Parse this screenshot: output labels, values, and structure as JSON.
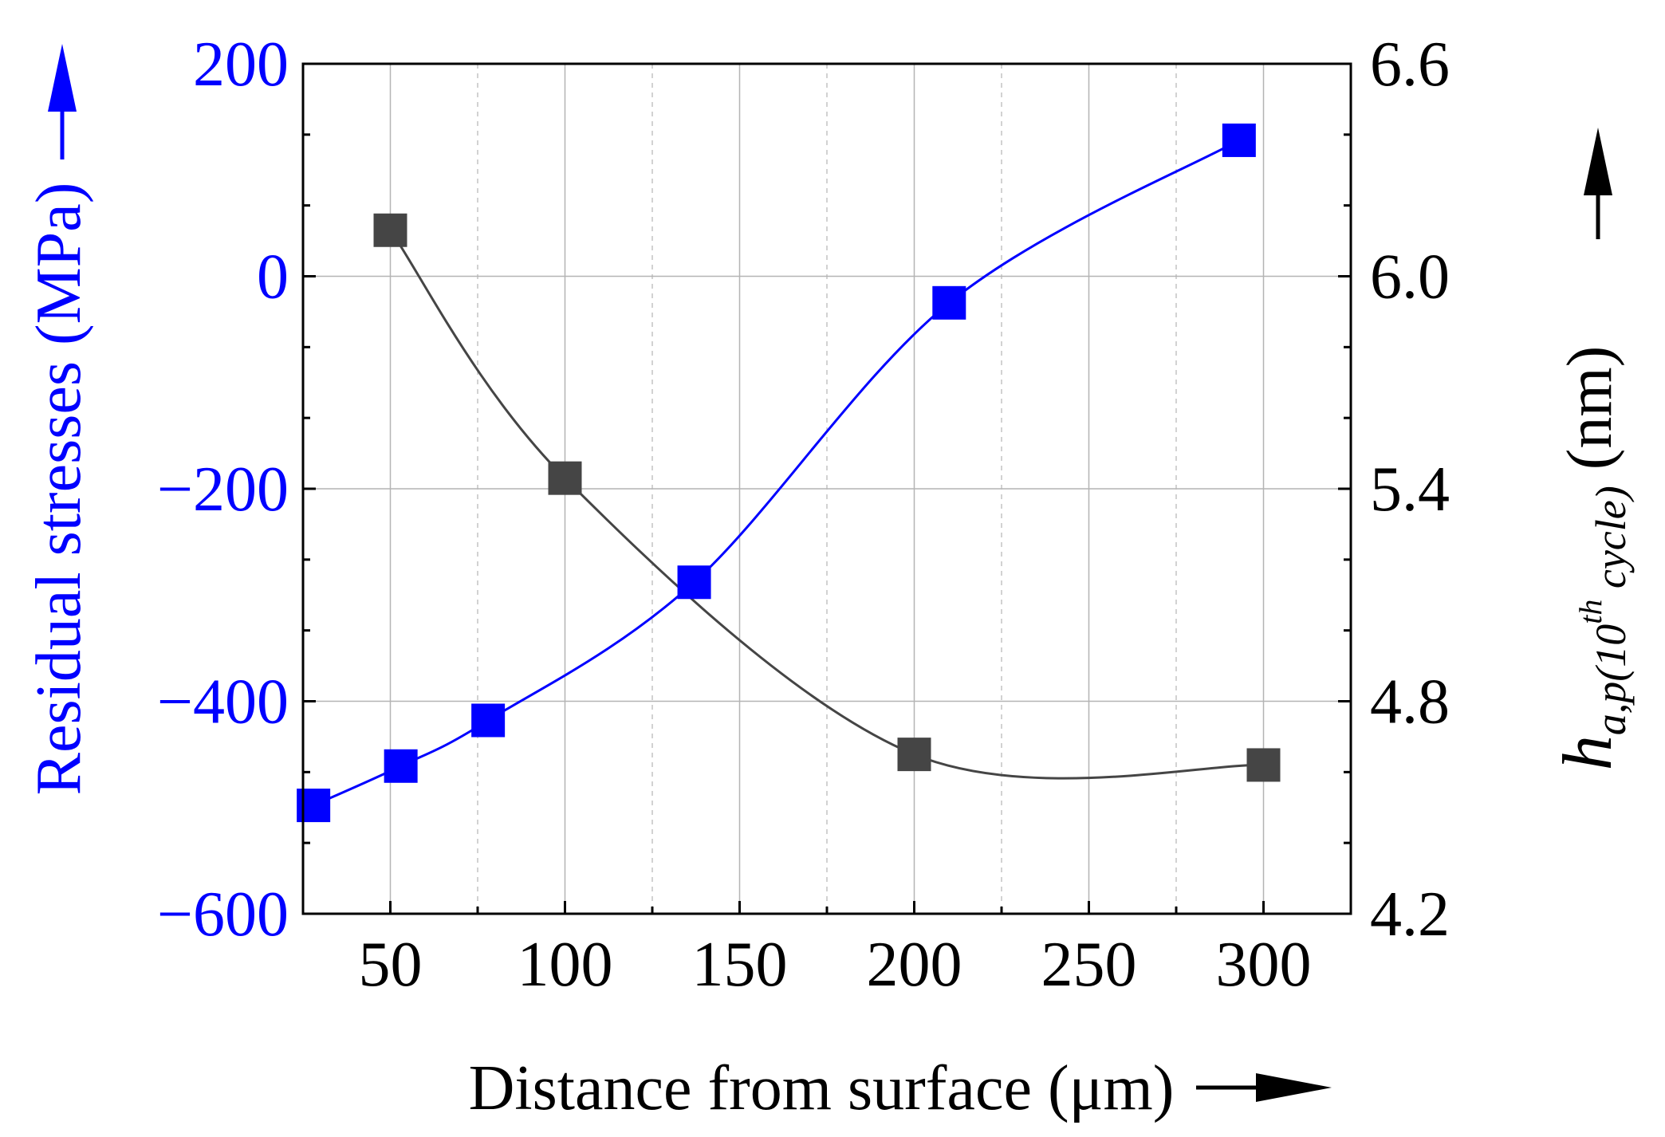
{
  "chart_data": {
    "type": "scatter",
    "title": "",
    "xlabel": "Distance from surface (μm)",
    "ylabel_left": "Residual stresses (MPa)",
    "ylabel_right": {
      "main": "h",
      "subscript": "a,p(10",
      "superscript": "th",
      "subscript_tail": " cycle)",
      "unit": " (nm)"
    },
    "xlim": [
      25,
      325
    ],
    "ylim_left": [
      -600,
      200
    ],
    "ylim_right": [
      4.2,
      6.6
    ],
    "x_ticks": [
      50,
      100,
      150,
      200,
      250,
      300
    ],
    "y_left_ticks": [
      -600,
      -400,
      -200,
      0,
      200
    ],
    "y_left_tick_labels": [
      "−600",
      "−400",
      "−200",
      "0",
      "200"
    ],
    "y_right_ticks": [
      4.2,
      4.8,
      5.4,
      6.0,
      6.6
    ],
    "y_right_tick_labels": [
      "4.2",
      "4.8",
      "5.4",
      "6.0",
      "6.6"
    ],
    "grid": true,
    "colors": {
      "residual": "#0000ff",
      "hap": "#454545",
      "grid": "#b4b4b4",
      "axis": "#000000"
    },
    "series": [
      {
        "name": "Residual stresses",
        "axis": "left",
        "marker": "square",
        "x": [
          28,
          53,
          78,
          137,
          210,
          293
        ],
        "y": [
          -498,
          -461,
          -418,
          -288,
          -25,
          128
        ]
      },
      {
        "name": "h_a,p(10th cycle)",
        "axis": "right",
        "marker": "square",
        "x": [
          50,
          100,
          200,
          300
        ],
        "y": [
          6.13,
          5.43,
          4.65,
          4.62
        ]
      }
    ]
  }
}
